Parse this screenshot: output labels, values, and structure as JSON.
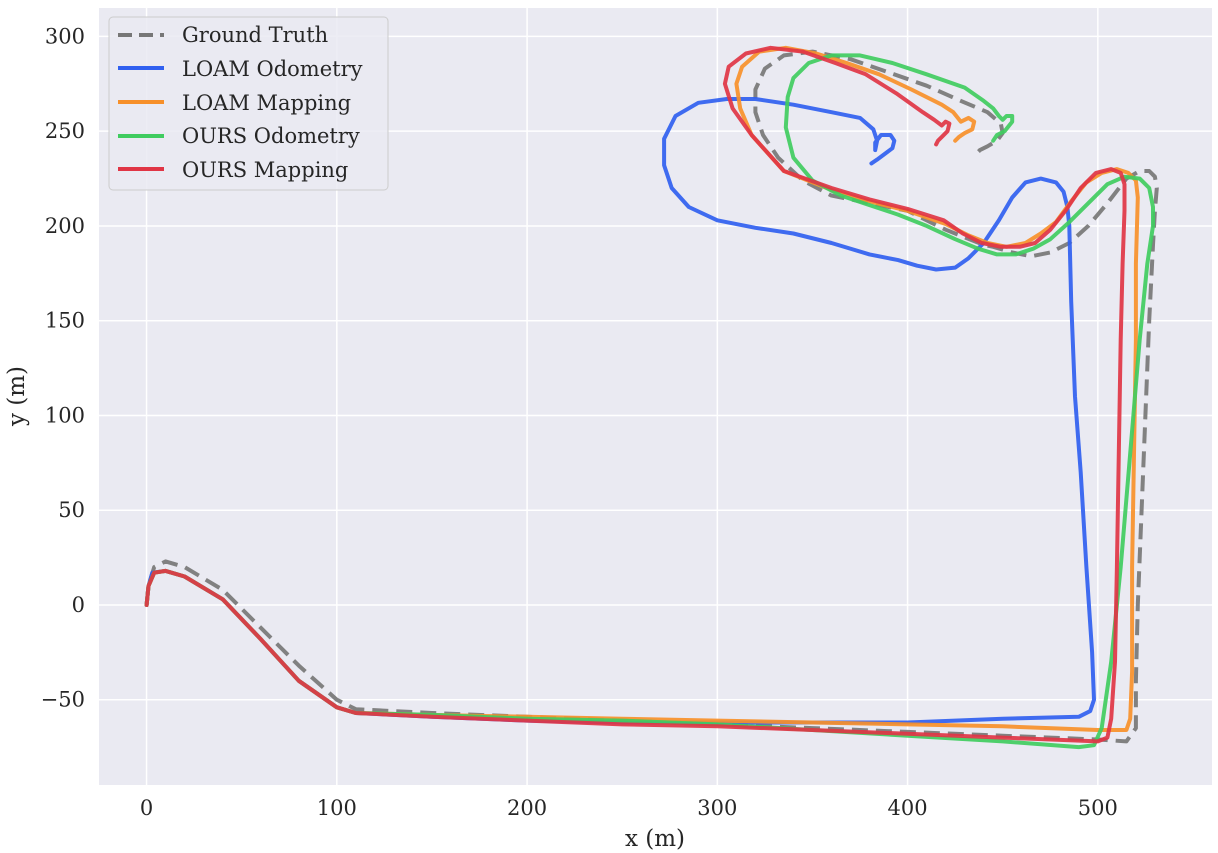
{
  "chart_data": {
    "type": "line",
    "title": "",
    "xlabel": "x (m)",
    "ylabel": "y (m)",
    "xlim": [
      -25,
      560
    ],
    "ylim": [
      -95,
      315
    ],
    "grid": true,
    "legend_position": "top-left",
    "x_ticks": [
      0,
      100,
      200,
      300,
      400,
      500
    ],
    "x_tick_labels": [
      "0",
      "100",
      "200",
      "300",
      "400",
      "500"
    ],
    "y_ticks": [
      -50,
      0,
      50,
      100,
      150,
      200,
      250,
      300
    ],
    "y_tick_labels": [
      "−50",
      "0",
      "50",
      "100",
      "150",
      "200",
      "250",
      "300"
    ],
    "colors": {
      "background": "#eaeaf2",
      "grid": "#ffffff",
      "text": "#262626"
    },
    "series": [
      {
        "name": "Ground Truth",
        "color": "#777777",
        "dashed": true,
        "x": [
          0,
          1,
          4,
          10,
          20,
          40,
          60,
          80,
          100,
          110,
          150,
          200,
          250,
          300,
          350,
          400,
          450,
          500,
          515,
          520,
          520,
          521,
          523,
          525,
          527,
          529,
          530,
          531,
          530,
          527,
          522,
          515,
          505,
          495,
          485,
          475,
          465,
          455,
          445,
          440,
          420,
          400,
          380,
          360,
          345,
          332,
          324,
          320,
          320,
          325,
          335,
          350,
          370,
          390,
          410,
          428,
          442,
          449,
          450,
          447,
          442,
          438,
          435
        ],
        "y": [
          0,
          10,
          20,
          23,
          20,
          8,
          -12,
          -32,
          -50,
          -55,
          -57,
          -59,
          -61,
          -63,
          -65,
          -67,
          -69,
          -71,
          -72,
          -65,
          -40,
          0,
          50,
          100,
          150,
          190,
          208,
          220,
          226,
          229,
          229,
          225,
          212,
          200,
          191,
          186,
          184,
          186,
          189,
          190,
          198,
          208,
          212,
          216,
          224,
          236,
          248,
          260,
          272,
          283,
          290,
          292,
          288,
          281,
          274,
          266,
          260,
          254,
          249,
          245,
          242,
          240,
          237
        ]
      },
      {
        "name": "LOAM Odometry",
        "color": "#3060f0",
        "dashed": false,
        "x": [
          0,
          1,
          3,
          10,
          20,
          40,
          60,
          80,
          100,
          110,
          150,
          200,
          250,
          300,
          350,
          400,
          450,
          490,
          496,
          498,
          497,
          494,
          491,
          488,
          486,
          485,
          484,
          482,
          478,
          470,
          462,
          455,
          448,
          440,
          432,
          425,
          415,
          405,
          395,
          380,
          360,
          340,
          320,
          300,
          285,
          276,
          272,
          272,
          278,
          290,
          305,
          320,
          340,
          360,
          375,
          382,
          384,
          383,
          383,
          386,
          391,
          393,
          392,
          388,
          384,
          381
        ],
        "y": [
          0,
          10,
          17,
          18,
          15,
          3,
          -18,
          -40,
          -54,
          -57,
          -59,
          -61,
          -62,
          -62,
          -62,
          -62,
          -60,
          -59,
          -56,
          -50,
          -25,
          20,
          70,
          110,
          160,
          200,
          210,
          218,
          223,
          225,
          223,
          215,
          203,
          191,
          183,
          178,
          177,
          179,
          182,
          185,
          191,
          196,
          199,
          203,
          210,
          220,
          232,
          246,
          258,
          265,
          267,
          267,
          264,
          260,
          257,
          251,
          245,
          240,
          244,
          248,
          248,
          245,
          241,
          238,
          235,
          233
        ]
      },
      {
        "name": "LOAM Mapping",
        "color": "#f7902a",
        "dashed": false,
        "x": [
          0,
          1,
          4,
          10,
          20,
          40,
          60,
          80,
          100,
          110,
          150,
          200,
          250,
          300,
          350,
          400,
          450,
          500,
          515,
          517,
          518,
          518,
          519,
          520,
          520,
          521,
          520,
          516,
          510,
          502,
          494,
          486,
          478,
          470,
          462,
          452,
          442,
          432,
          420,
          400,
          380,
          360,
          335,
          318,
          312,
          310,
          313,
          322,
          336,
          352,
          368,
          385,
          402,
          418,
          424,
          428,
          432,
          435,
          434,
          430,
          427,
          425
        ],
        "y": [
          0,
          10,
          17,
          18,
          15,
          3,
          -18,
          -40,
          -54,
          -57,
          -58,
          -59,
          -60,
          -61,
          -62,
          -63,
          -64,
          -66,
          -66,
          -60,
          -35,
          20,
          80,
          140,
          180,
          215,
          224,
          228,
          230,
          228,
          223,
          213,
          202,
          196,
          191,
          189,
          191,
          195,
          201,
          208,
          213,
          219,
          229,
          248,
          262,
          275,
          284,
          292,
          294,
          291,
          286,
          280,
          272,
          264,
          260,
          255,
          257,
          255,
          251,
          249,
          247,
          245
        ]
      },
      {
        "name": "OURS Odometry",
        "color": "#40cc60",
        "dashed": false,
        "x": [
          0,
          1,
          4,
          10,
          20,
          40,
          60,
          80,
          100,
          110,
          150,
          200,
          250,
          300,
          350,
          400,
          450,
          490,
          498,
          502,
          507,
          512,
          517,
          522,
          526,
          529,
          529,
          527,
          522,
          514,
          505,
          495,
          485,
          475,
          466,
          457,
          447,
          437,
          425,
          410,
          395,
          380,
          365,
          350,
          340,
          336,
          337,
          340,
          348,
          360,
          375,
          392,
          410,
          430,
          440,
          445,
          448,
          450,
          452,
          455,
          455,
          451,
          447,
          445
        ],
        "y": [
          0,
          10,
          17,
          18,
          15,
          3,
          -18,
          -40,
          -54,
          -57,
          -58,
          -60,
          -61,
          -63,
          -66,
          -69,
          -72,
          -75,
          -74,
          -65,
          -30,
          20,
          80,
          140,
          180,
          200,
          210,
          220,
          225,
          226,
          222,
          212,
          202,
          193,
          188,
          185,
          185,
          188,
          193,
          200,
          206,
          211,
          216,
          224,
          236,
          252,
          268,
          278,
          286,
          290,
          290,
          286,
          280,
          273,
          266,
          262,
          258,
          256,
          258,
          258,
          255,
          250,
          248,
          245
        ]
      },
      {
        "name": "OURS Mapping",
        "color": "#e03545",
        "dashed": false,
        "x": [
          0,
          1,
          4,
          10,
          20,
          40,
          60,
          80,
          100,
          110,
          150,
          200,
          250,
          300,
          350,
          400,
          450,
          500,
          505,
          507,
          509,
          510,
          511,
          512,
          513,
          514,
          514,
          512,
          507,
          499,
          491,
          483,
          475,
          467,
          459,
          449,
          439,
          429,
          419,
          400,
          380,
          360,
          335,
          318,
          308,
          304,
          306,
          315,
          328,
          345,
          362,
          378,
          394,
          408,
          414,
          418,
          420,
          422,
          421,
          418,
          416,
          415
        ],
        "y": [
          0,
          10,
          17,
          18,
          15,
          3,
          -18,
          -40,
          -54,
          -57,
          -59,
          -61,
          -63,
          -64,
          -66,
          -68,
          -70,
          -72,
          -70,
          -60,
          -30,
          20,
          80,
          140,
          180,
          208,
          222,
          228,
          230,
          228,
          220,
          208,
          198,
          191,
          189,
          189,
          191,
          196,
          203,
          209,
          214,
          220,
          229,
          248,
          262,
          275,
          284,
          291,
          294,
          292,
          286,
          280,
          270,
          260,
          256,
          253,
          255,
          254,
          250,
          247,
          245,
          243
        ]
      }
    ]
  }
}
